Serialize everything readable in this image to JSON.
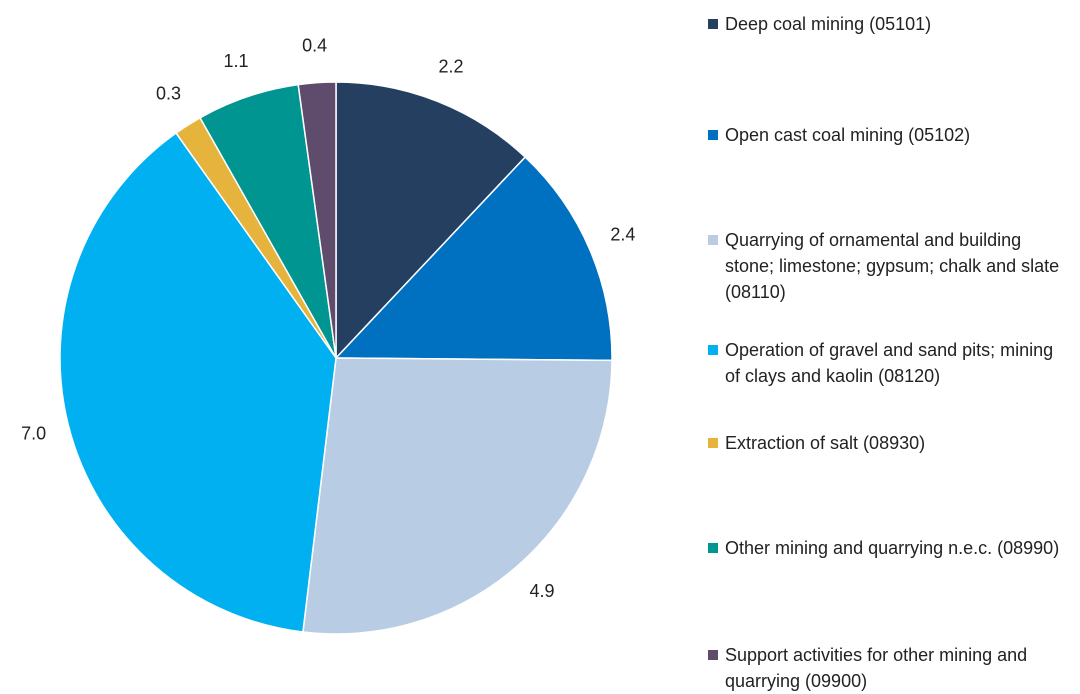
{
  "chart_data": {
    "type": "pie",
    "categories": [
      "Deep coal mining (05101)",
      "Open cast coal mining (05102)",
      "Quarrying of ornamental and building stone; limestone; gypsum; chalk and slate (08110)",
      "Operation of gravel and sand pits; mining of clays and kaolin (08120)",
      "Extraction of salt (08930)",
      "Other mining and quarrying n.e.c. (08990)",
      "Support activities for other mining and quarrying (09900)"
    ],
    "values": [
      2.2,
      2.4,
      4.9,
      7,
      0.3,
      1.1,
      0.4
    ],
    "value_labels": [
      "2.2",
      "2.4",
      "4.9",
      "7.0",
      "0.3",
      "1.1",
      "0.4"
    ],
    "colors": [
      "#243f60",
      "#0070c0",
      "#b8cce4",
      "#00b0f0",
      "#e6b43c",
      "#009590",
      "#5f4b6b"
    ]
  }
}
